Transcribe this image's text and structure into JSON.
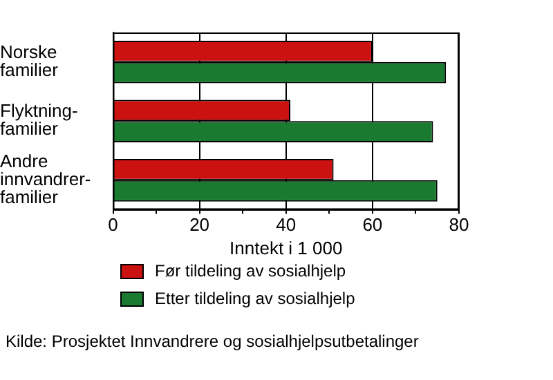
{
  "chart_data": {
    "type": "bar",
    "orientation": "horizontal",
    "categories": [
      "Norske\nfamilier",
      "Flyktning-\nfamilier",
      "Andre\ninnvandrer-\nfamilier"
    ],
    "series": [
      {
        "name": "Før tildeling av sosialhjelp",
        "color": "#cc1111",
        "values": [
          60,
          41,
          51
        ]
      },
      {
        "name": "Etter tildeling av sosialhjelp",
        "color": "#1a7a30",
        "values": [
          77,
          74,
          75
        ]
      }
    ],
    "xlabel": "Inntekt i 1 000",
    "xlim": [
      0,
      80
    ],
    "xticks": [
      0,
      {
        "value": 10,
        "label": null
      },
      20,
      {
        "value": 30,
        "label": null
      },
      40,
      {
        "value": 50,
        "label": null
      },
      60,
      {
        "value": 70,
        "label": null
      },
      80
    ],
    "grid": "x",
    "legend": "bottom",
    "annotations": [
      "Kilde: Prosjektet Innvandrere og sosialhjelpsutbetalinger"
    ]
  }
}
